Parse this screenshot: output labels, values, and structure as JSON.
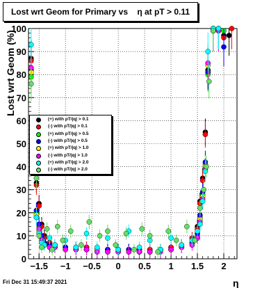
{
  "title": "Lost wrt Geom for Primary vs    η at pT > 0.11",
  "timestamp": "Fri Dec 31 15:49:37 2021",
  "chart_data": {
    "type": "scatter",
    "title": "Lost wrt Geom for Primary vs    η at pT > 0.11",
    "xlabel": "η",
    "ylabel": "Lost wrt Geom (%)",
    "xlim": [
      -1.7,
      2.25
    ],
    "ylim": [
      0,
      100
    ],
    "x_ticks": [
      -1.5,
      -1,
      -0.5,
      0,
      0.5,
      1,
      1.5,
      2
    ],
    "x_tick_labels": [
      "−1.5",
      "−1",
      "−0.5",
      "0",
      "0.5",
      "1",
      "1.5",
      "2"
    ],
    "y_ticks": [
      0,
      10,
      20,
      30,
      40,
      50,
      60,
      70,
      80,
      90,
      100
    ],
    "y_tick_labels": [
      "0",
      "10",
      "20",
      "30",
      "40",
      "50",
      "60",
      "70",
      "80",
      "90",
      "100"
    ],
    "grid": true,
    "legend_position": "middle-left",
    "series": [
      {
        "name": "(+) with pT/|q| > 0.1",
        "color": "#000000",
        "points": [
          [
            -1.65,
            87
          ],
          [
            -1.55,
            33
          ],
          [
            -1.5,
            24
          ],
          [
            -1.45,
            15
          ],
          [
            -1.4,
            10
          ],
          [
            -1.3,
            7
          ],
          [
            -1.2,
            6
          ],
          [
            -1.0,
            5
          ],
          [
            -0.8,
            5
          ],
          [
            -0.6,
            5
          ],
          [
            -0.4,
            4
          ],
          [
            -0.2,
            4
          ],
          [
            0.0,
            4
          ],
          [
            0.2,
            4
          ],
          [
            0.4,
            4
          ],
          [
            0.6,
            4
          ],
          [
            0.8,
            4
          ],
          [
            1.0,
            5
          ],
          [
            1.2,
            6
          ],
          [
            1.4,
            9
          ],
          [
            1.5,
            14
          ],
          [
            1.55,
            25
          ],
          [
            1.6,
            35
          ],
          [
            1.65,
            55
          ],
          [
            1.7,
            82
          ],
          [
            1.8,
            99
          ],
          [
            1.9,
            99
          ],
          [
            2.0,
            97
          ],
          [
            2.1,
            97
          ]
        ]
      },
      {
        "name": "(-) with pT/|q| > 0.1",
        "color": "#ff0000",
        "points": [
          [
            -1.65,
            86
          ],
          [
            -1.55,
            32
          ],
          [
            -1.5,
            23
          ],
          [
            -1.45,
            14
          ],
          [
            -1.4,
            9
          ],
          [
            -1.3,
            7
          ],
          [
            -1.2,
            6
          ],
          [
            -1.0,
            5
          ],
          [
            -0.8,
            5
          ],
          [
            -0.6,
            5
          ],
          [
            -0.4,
            4
          ],
          [
            -0.2,
            4
          ],
          [
            0.0,
            4
          ],
          [
            0.2,
            4
          ],
          [
            0.4,
            4
          ],
          [
            0.6,
            4
          ],
          [
            0.8,
            4
          ],
          [
            1.0,
            5
          ],
          [
            1.2,
            6
          ],
          [
            1.4,
            9
          ],
          [
            1.5,
            13
          ],
          [
            1.55,
            24
          ],
          [
            1.6,
            34
          ],
          [
            1.65,
            54
          ],
          [
            1.7,
            81
          ],
          [
            1.8,
            99
          ],
          [
            1.9,
            100
          ],
          [
            2.0,
            96
          ],
          [
            2.15,
            100
          ]
        ]
      },
      {
        "name": "(+) with pT/|q| > 0.5",
        "color": "#00ff00",
        "points": [
          [
            -1.65,
            79
          ],
          [
            -1.55,
            20
          ],
          [
            -1.5,
            14
          ],
          [
            -1.45,
            9
          ],
          [
            -1.4,
            7
          ],
          [
            -1.3,
            6
          ],
          [
            -1.2,
            5
          ],
          [
            -1.0,
            5
          ],
          [
            -0.8,
            4
          ],
          [
            -0.6,
            4
          ],
          [
            -0.4,
            4
          ],
          [
            -0.2,
            4
          ],
          [
            0.0,
            4
          ],
          [
            0.2,
            4
          ],
          [
            0.4,
            3
          ],
          [
            0.6,
            3
          ],
          [
            0.8,
            4
          ],
          [
            1.0,
            4
          ],
          [
            1.2,
            5
          ],
          [
            1.4,
            7
          ],
          [
            1.5,
            10
          ],
          [
            1.55,
            18
          ],
          [
            1.6,
            28
          ],
          [
            1.65,
            41
          ],
          [
            1.7,
            80
          ],
          [
            1.8,
            100
          ],
          [
            1.9,
            100
          ],
          [
            2.0,
            99
          ]
        ]
      },
      {
        "name": "(-) with pT/|q| > 0.5",
        "color": "#0000ff",
        "points": [
          [
            -1.65,
            82
          ],
          [
            -1.55,
            21
          ],
          [
            -1.5,
            15
          ],
          [
            -1.45,
            10
          ],
          [
            -1.4,
            7
          ],
          [
            -1.3,
            6
          ],
          [
            -1.2,
            5
          ],
          [
            -1.0,
            5
          ],
          [
            -0.8,
            4
          ],
          [
            -0.6,
            4
          ],
          [
            -0.4,
            4
          ],
          [
            -0.2,
            4
          ],
          [
            0.0,
            4
          ],
          [
            0.2,
            4
          ],
          [
            0.4,
            3
          ],
          [
            0.6,
            3
          ],
          [
            0.8,
            4
          ],
          [
            1.0,
            4
          ],
          [
            1.2,
            5
          ],
          [
            1.4,
            7
          ],
          [
            1.5,
            11
          ],
          [
            1.55,
            19
          ],
          [
            1.6,
            29
          ],
          [
            1.65,
            42
          ],
          [
            1.7,
            81
          ],
          [
            1.8,
            100
          ],
          [
            1.9,
            99
          ],
          [
            2.0,
            92
          ]
        ]
      },
      {
        "name": "(+) with pT/|q| > 1.0",
        "color": "#ffff00",
        "points": [
          [
            -1.65,
            81
          ],
          [
            -1.55,
            19
          ],
          [
            -1.5,
            12
          ],
          [
            -1.45,
            8
          ],
          [
            -1.4,
            6
          ],
          [
            -1.3,
            5
          ],
          [
            -1.2,
            5
          ],
          [
            -1.0,
            4
          ],
          [
            -0.8,
            4
          ],
          [
            -0.6,
            4
          ],
          [
            -0.4,
            4
          ],
          [
            -0.2,
            3
          ],
          [
            0.0,
            3
          ],
          [
            0.2,
            3
          ],
          [
            0.4,
            3
          ],
          [
            0.6,
            3
          ],
          [
            0.8,
            4
          ],
          [
            1.0,
            4
          ],
          [
            1.2,
            5
          ],
          [
            1.4,
            6
          ],
          [
            1.5,
            9
          ],
          [
            1.55,
            17
          ],
          [
            1.6,
            27
          ],
          [
            1.65,
            40
          ],
          [
            1.7,
            84
          ],
          [
            1.8,
            100
          ],
          [
            1.9,
            99
          ]
        ]
      },
      {
        "name": "(-) with pT/|q| > 1.0",
        "color": "#ff00ff",
        "points": [
          [
            -1.65,
            83
          ],
          [
            -1.55,
            18
          ],
          [
            -1.5,
            13
          ],
          [
            -1.45,
            8
          ],
          [
            -1.4,
            6
          ],
          [
            -1.3,
            5
          ],
          [
            -1.2,
            5
          ],
          [
            -1.0,
            4
          ],
          [
            -0.8,
            4
          ],
          [
            -0.6,
            4
          ],
          [
            -0.4,
            3
          ],
          [
            -0.2,
            3
          ],
          [
            0.0,
            3
          ],
          [
            0.2,
            3
          ],
          [
            0.4,
            3
          ],
          [
            0.6,
            3
          ],
          [
            0.8,
            3
          ],
          [
            1.0,
            4
          ],
          [
            1.2,
            5
          ],
          [
            1.4,
            6
          ],
          [
            1.5,
            9
          ],
          [
            1.55,
            16
          ],
          [
            1.6,
            26
          ],
          [
            1.65,
            39
          ],
          [
            1.7,
            85
          ],
          [
            1.8,
            100
          ],
          [
            1.9,
            99
          ]
        ]
      },
      {
        "name": "(+) with pT/|q| > 2.0",
        "color": "#00ffff",
        "points": [
          [
            -1.65,
            93
          ],
          [
            -1.55,
            18
          ],
          [
            -1.5,
            11
          ],
          [
            -1.45,
            7
          ],
          [
            -1.4,
            6
          ],
          [
            -1.3,
            9
          ],
          [
            -1.2,
            6
          ],
          [
            -1.0,
            8
          ],
          [
            -0.8,
            5
          ],
          [
            -0.6,
            11
          ],
          [
            -0.4,
            5
          ],
          [
            -0.2,
            9
          ],
          [
            0.0,
            4
          ],
          [
            0.2,
            12
          ],
          [
            0.4,
            5
          ],
          [
            0.6,
            8
          ],
          [
            0.8,
            4
          ],
          [
            1.0,
            9
          ],
          [
            1.2,
            6
          ],
          [
            1.4,
            8
          ],
          [
            1.5,
            12
          ],
          [
            1.55,
            15
          ],
          [
            1.6,
            25
          ],
          [
            1.65,
            38
          ],
          [
            1.7,
            90
          ],
          [
            1.8,
            100
          ],
          [
            1.9,
            100
          ]
        ]
      },
      {
        "name": "(-) with pT/|q| > 2.0",
        "color": "#66dd66",
        "points": [
          [
            -1.65,
            76
          ],
          [
            -1.55,
            35
          ],
          [
            -1.5,
            10
          ],
          [
            -1.45,
            5
          ],
          [
            -1.35,
            13
          ],
          [
            -1.25,
            4
          ],
          [
            -1.15,
            14
          ],
          [
            -1.05,
            8
          ],
          [
            -0.9,
            12
          ],
          [
            -0.7,
            6
          ],
          [
            -0.55,
            16
          ],
          [
            -0.35,
            10
          ],
          [
            -0.2,
            12
          ],
          [
            -0.05,
            6
          ],
          [
            0.15,
            11
          ],
          [
            0.3,
            4
          ],
          [
            0.45,
            13
          ],
          [
            0.6,
            10
          ],
          [
            0.75,
            3
          ],
          [
            0.95,
            12
          ],
          [
            1.1,
            8
          ],
          [
            1.3,
            14
          ],
          [
            1.45,
            8
          ],
          [
            1.55,
            22
          ],
          [
            1.62,
            30
          ],
          [
            1.67,
            40
          ],
          [
            1.72,
            77
          ],
          [
            1.8,
            99
          ]
        ]
      }
    ]
  }
}
